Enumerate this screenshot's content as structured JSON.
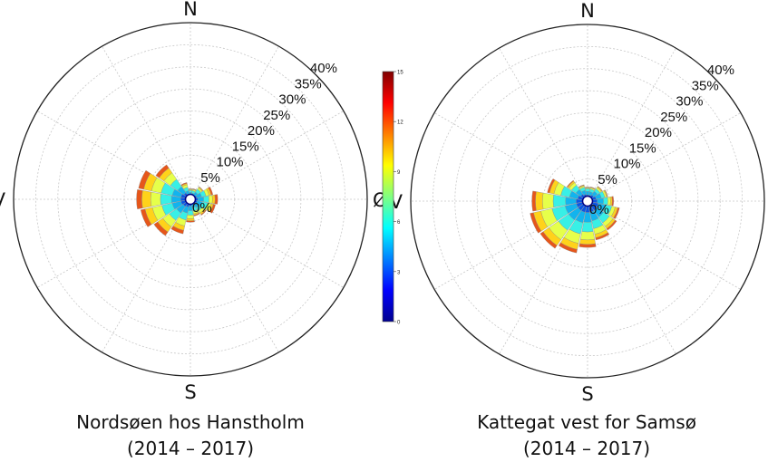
{
  "chart_data": [
    {
      "type": "polar-bar",
      "title": "Nordsøen hos Hanstholm",
      "subtitle": "(2014 – 2017)",
      "directions": {
        "north": "N",
        "east": "Ø",
        "south": "S",
        "west": "V"
      },
      "radial_ticks": [
        "0%",
        "5%",
        "10%",
        "15%",
        "20%",
        "25%",
        "30%",
        "35%",
        "40%"
      ],
      "rlim": [
        0,
        40
      ],
      "grid": true,
      "sector_width_deg": 22.5,
      "speed_bins": [
        0,
        2,
        4,
        6,
        8,
        10,
        12,
        15
      ],
      "sectors": [
        {
          "direction_deg": 0,
          "cumulative": [
            0.5,
            1.0,
            1.6,
            2.0,
            2.2,
            2.3,
            2.4
          ]
        },
        {
          "direction_deg": 22.5,
          "cumulative": [
            0.5,
            1.0,
            1.5,
            2.0,
            2.3,
            2.4,
            2.5
          ]
        },
        {
          "direction_deg": 45,
          "cumulative": [
            0.6,
            1.2,
            2.0,
            2.8,
            3.2,
            3.4,
            3.5
          ]
        },
        {
          "direction_deg": 67.5,
          "cumulative": [
            0.7,
            1.5,
            2.6,
            3.6,
            4.3,
            4.8,
            5.2
          ]
        },
        {
          "direction_deg": 90,
          "cumulative": [
            0.8,
            1.7,
            3.0,
            4.2,
            5.0,
            5.6,
            6.2
          ]
        },
        {
          "direction_deg": 112.5,
          "cumulative": [
            0.8,
            1.6,
            2.8,
            4.0,
            4.8,
            5.3,
            5.8
          ]
        },
        {
          "direction_deg": 135,
          "cumulative": [
            0.7,
            1.4,
            2.3,
            3.2,
            3.8,
            4.2,
            4.4
          ]
        },
        {
          "direction_deg": 157.5,
          "cumulative": [
            0.6,
            1.2,
            2.0,
            2.8,
            3.4,
            3.7,
            3.9
          ]
        },
        {
          "direction_deg": 180,
          "cumulative": [
            0.7,
            1.5,
            2.6,
            3.6,
            4.4,
            4.9,
            5.2
          ]
        },
        {
          "direction_deg": 202.5,
          "cumulative": [
            0.8,
            1.8,
            3.2,
            4.8,
            6.2,
            7.2,
            8.0
          ]
        },
        {
          "direction_deg": 225,
          "cumulative": [
            0.9,
            2.0,
            3.8,
            5.8,
            7.6,
            9.0,
            10.0
          ]
        },
        {
          "direction_deg": 247.5,
          "cumulative": [
            0.9,
            2.2,
            4.2,
            6.6,
            8.8,
            10.5,
            11.5
          ]
        },
        {
          "direction_deg": 270,
          "cumulative": [
            0.9,
            2.2,
            4.3,
            6.8,
            9.0,
            11.0,
            12.2
          ]
        },
        {
          "direction_deg": 292.5,
          "cumulative": [
            0.9,
            2.2,
            4.2,
            6.8,
            9.0,
            10.8,
            12.0
          ]
        },
        {
          "direction_deg": 315,
          "cumulative": [
            0.8,
            1.8,
            3.5,
            5.5,
            7.3,
            8.6,
            9.5
          ]
        },
        {
          "direction_deg": 337.5,
          "cumulative": [
            0.6,
            1.2,
            2.0,
            2.8,
            3.4,
            3.7,
            3.9
          ]
        }
      ]
    },
    {
      "type": "polar-bar",
      "title": "Kattegat vest for Samsø",
      "subtitle": "(2014 – 2017)",
      "directions": {
        "north": "N",
        "east": "Ø",
        "south": "S",
        "west": "V"
      },
      "radial_ticks": [
        "0%",
        "5%",
        "10%",
        "15%",
        "20%",
        "25%",
        "30%",
        "35%",
        "40%"
      ],
      "rlim": [
        0,
        40
      ],
      "grid": true,
      "sector_width_deg": 22.5,
      "speed_bins": [
        0,
        2,
        4,
        6,
        8,
        10,
        12,
        15
      ],
      "sectors": [
        {
          "direction_deg": 0,
          "cumulative": [
            0.7,
            1.4,
            2.2,
            2.8,
            3.0,
            3.1,
            3.2
          ]
        },
        {
          "direction_deg": 22.5,
          "cumulative": [
            0.7,
            1.4,
            2.2,
            2.8,
            3.1,
            3.2,
            3.3
          ]
        },
        {
          "direction_deg": 45,
          "cumulative": [
            0.8,
            1.7,
            2.7,
            3.4,
            3.8,
            4.0,
            4.1
          ]
        },
        {
          "direction_deg": 67.5,
          "cumulative": [
            0.9,
            2.0,
            3.2,
            4.0,
            4.4,
            4.6,
            4.7
          ]
        },
        {
          "direction_deg": 90,
          "cumulative": [
            1.0,
            2.2,
            3.6,
            4.6,
            5.2,
            5.6,
            5.9
          ]
        },
        {
          "direction_deg": 112.5,
          "cumulative": [
            1.1,
            2.5,
            4.2,
            5.6,
            6.4,
            7.0,
            7.4
          ]
        },
        {
          "direction_deg": 135,
          "cumulative": [
            1.1,
            2.6,
            4.4,
            6.0,
            7.0,
            7.6,
            8.0
          ]
        },
        {
          "direction_deg": 157.5,
          "cumulative": [
            1.1,
            2.6,
            4.6,
            6.4,
            7.7,
            8.5,
            9.0
          ]
        },
        {
          "direction_deg": 180,
          "cumulative": [
            1.1,
            2.6,
            4.8,
            7.0,
            8.8,
            9.8,
            10.5
          ]
        },
        {
          "direction_deg": 202.5,
          "cumulative": [
            1.1,
            2.6,
            5.0,
            7.6,
            9.8,
            11.2,
            12.0
          ]
        },
        {
          "direction_deg": 225,
          "cumulative": [
            1.1,
            2.6,
            5.2,
            8.0,
            10.6,
            12.2,
            13.0
          ]
        },
        {
          "direction_deg": 247.5,
          "cumulative": [
            1.1,
            2.6,
            5.2,
            8.2,
            10.8,
            12.5,
            13.3
          ]
        },
        {
          "direction_deg": 270,
          "cumulative": [
            1.1,
            2.6,
            5.0,
            7.8,
            10.2,
            11.8,
            12.6
          ]
        },
        {
          "direction_deg": 292.5,
          "cumulative": [
            1.0,
            2.3,
            4.2,
            6.2,
            7.8,
            8.8,
            9.3
          ]
        },
        {
          "direction_deg": 315,
          "cumulative": [
            0.9,
            1.9,
            3.2,
            4.4,
            5.1,
            5.5,
            5.7
          ]
        },
        {
          "direction_deg": 337.5,
          "cumulative": [
            0.8,
            1.6,
            2.5,
            3.2,
            3.5,
            3.7,
            3.8
          ]
        }
      ]
    }
  ],
  "colorbar": {
    "ticks": [
      "15",
      "12",
      "9",
      "6",
      "3",
      "0"
    ],
    "range": [
      0,
      15
    ],
    "colors": [
      "#00008f",
      "#0000ff",
      "#0080ff",
      "#00ffff",
      "#80ff80",
      "#ffff00",
      "#ff8000",
      "#ff0000",
      "#800000"
    ]
  },
  "bin_colors": [
    "#0000cc",
    "#0a55e6",
    "#12b4ee",
    "#38f0e6",
    "#e6ff4a",
    "#ffd21a",
    "#e6561a"
  ],
  "captions": {
    "left": {
      "line1": "Nordsøen hos Hanstholm",
      "line2": "(2014 – 2017)"
    },
    "right": {
      "line1": "Kattegat vest for Samsø",
      "line2": "(2014 – 2017)"
    }
  }
}
